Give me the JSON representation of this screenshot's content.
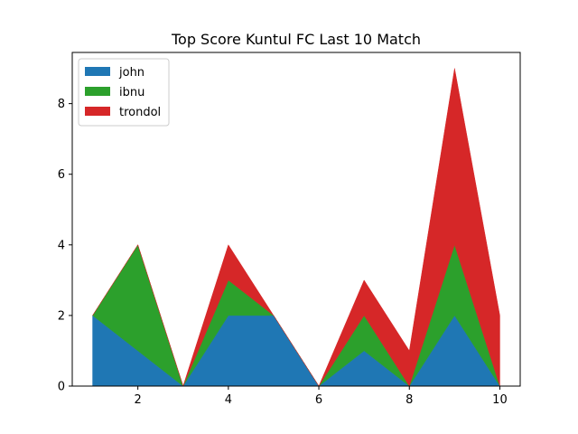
{
  "chart_data": {
    "type": "area",
    "stacked": true,
    "title": "Top Score Kuntul FC Last 10 Match",
    "xlabel": "",
    "ylabel": "",
    "x": [
      1,
      2,
      3,
      4,
      5,
      6,
      7,
      8,
      9,
      10
    ],
    "xlim": [
      0.55,
      10.45
    ],
    "ylim": [
      0,
      9.45
    ],
    "xticks": [
      2,
      4,
      6,
      8,
      10
    ],
    "yticks": [
      0,
      2,
      4,
      6,
      8
    ],
    "grid": false,
    "legend_position": "top-left",
    "series": [
      {
        "name": "john",
        "color": "#1f77b4",
        "values": [
          2,
          1,
          0,
          2,
          2,
          0,
          1,
          0,
          2,
          0
        ]
      },
      {
        "name": "ibnu",
        "color": "#2ca02c",
        "values": [
          0,
          3,
          0,
          1,
          0,
          0,
          1,
          0,
          2,
          0
        ]
      },
      {
        "name": "trondol",
        "color": "#d62728",
        "values": [
          0,
          0,
          0,
          1,
          0,
          0,
          1,
          1,
          5,
          2
        ]
      }
    ]
  }
}
